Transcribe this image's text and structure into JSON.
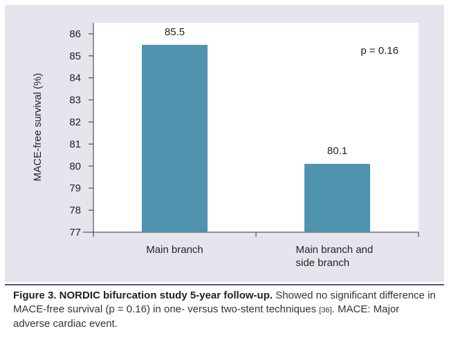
{
  "chart_data": {
    "type": "bar",
    "categories": [
      [
        "Main branch"
      ],
      [
        "Main branch and",
        "side branch"
      ]
    ],
    "values": [
      85.5,
      80.1
    ],
    "data_labels": [
      "85.5",
      "80.1"
    ],
    "ylabel": "MACE-free survival (%)",
    "xlabel": "",
    "ylim": [
      77,
      86
    ],
    "yticks": [
      77,
      78,
      79,
      80,
      81,
      82,
      83,
      84,
      85,
      86
    ],
    "annotation": "p = 0.16",
    "annotation_position": "top-right",
    "grid": false,
    "legend": "none",
    "bar_color": "#4f93ae"
  },
  "caption": {
    "title": "Figure 3. NORDIC bifurcation study 5-year follow-up.",
    "text_a": " Showed no significant difference in MACE-free survival (p = 0.16) in one- versus two-stent techniques ",
    "ref": "[36]",
    "text_b": ". MACE: Major adverse cardiac event."
  }
}
